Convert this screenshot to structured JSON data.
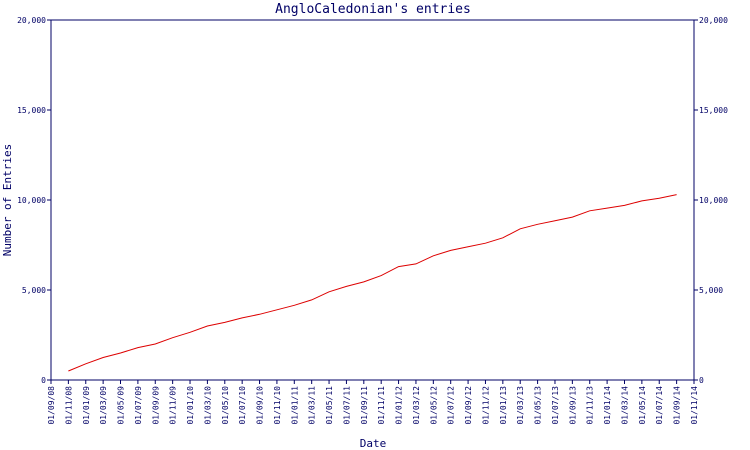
{
  "chart_data": {
    "type": "line",
    "title": "AngloCaledonian's entries",
    "x_label": "Date",
    "y_label": "Number of Entries",
    "categories": [
      "01/09/08",
      "01/11/08",
      "01/01/09",
      "01/03/09",
      "01/05/09",
      "01/07/09",
      "01/09/09",
      "01/11/09",
      "01/01/10",
      "01/03/10",
      "01/05/10",
      "01/07/10",
      "01/09/10",
      "01/11/10",
      "01/01/11",
      "01/03/11",
      "01/05/11",
      "01/07/11",
      "01/09/11",
      "01/11/11",
      "01/01/12",
      "01/03/12",
      "01/05/12",
      "01/07/12",
      "01/09/12",
      "01/11/12",
      "01/01/13",
      "01/03/13",
      "01/05/13",
      "01/07/13",
      "01/09/13",
      "01/11/13",
      "01/01/14",
      "01/03/14",
      "01/05/14",
      "01/07/14",
      "01/09/14",
      "01/11/14"
    ],
    "series": [
      {
        "name": "AngloCaledonian",
        "color": "#dd0000",
        "values": [
          null,
          500,
          900,
          1250,
          1500,
          1800,
          2000,
          2350,
          2650,
          3000,
          3200,
          3450,
          3650,
          3900,
          4150,
          4450,
          4900,
          5200,
          5450,
          5800,
          6300,
          6450,
          6900,
          7200,
          7400,
          7600,
          7900,
          8400,
          8650,
          8850,
          9050,
          9400,
          9550,
          9700,
          9950,
          10100,
          10300,
          null
        ]
      }
    ],
    "ylim": [
      0,
      20000
    ],
    "yticks": [
      0,
      {
        "value": 5000,
        "label": "5,000"
      },
      {
        "value": 10000,
        "label": "10,000"
      },
      {
        "value": 15000,
        "label": "15,000"
      },
      {
        "value": 20000,
        "label": "20,000"
      }
    ],
    "axis_color": "#000066"
  }
}
